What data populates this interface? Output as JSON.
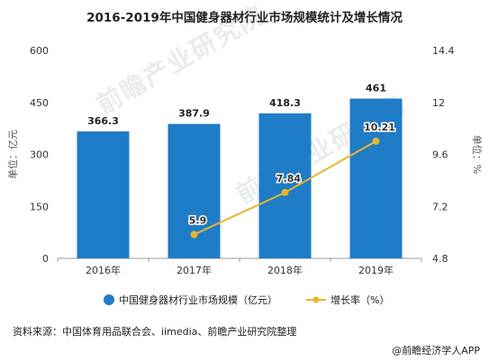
{
  "title": "2016-2019年中国健身器材行业市场规模统计及增长情况",
  "source": "资料来源：中国体育用品联合会、iimedia、前瞻产业研究院整理",
  "brand": "@前瞻经济学人APP",
  "watermark": "前瞻产业研究院",
  "chart_data": {
    "type": "bar",
    "categories": [
      "2016年",
      "2017年",
      "2018年",
      "2019年"
    ],
    "series": [
      {
        "name": "中国健身器材行业市场规模（亿元）",
        "kind": "bar",
        "axis": "left",
        "values": [
          366.3,
          387.9,
          418.3,
          461
        ],
        "labels": [
          "366.3",
          "387.9",
          "418.3",
          "461"
        ],
        "color": "#1f7cc7"
      },
      {
        "name": "增长率（%）",
        "kind": "line",
        "axis": "right",
        "values": [
          null,
          5.9,
          7.84,
          10.21
        ],
        "labels": [
          "",
          "5.9",
          "7.84",
          "10.21"
        ],
        "color": "#e8b52e"
      }
    ],
    "y_left": {
      "label": "单位：亿元",
      "ylim": [
        0,
        600
      ],
      "ticks": [
        "0",
        "150",
        "300",
        "450",
        "600"
      ]
    },
    "y_right": {
      "label": "单位：%",
      "ylim": [
        4.8,
        14.4
      ],
      "ticks": [
        "4.8",
        "7.2",
        "9.6",
        "12",
        "14.4"
      ]
    },
    "grid": false,
    "legend_position": "bottom"
  }
}
